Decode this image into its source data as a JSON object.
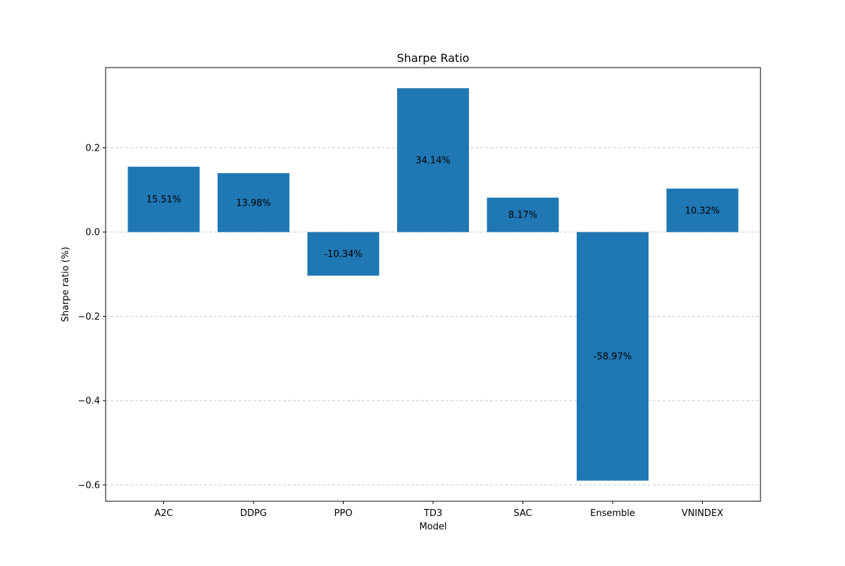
{
  "chart_data": {
    "type": "bar",
    "title": "Sharpe Ratio",
    "xlabel": "Model",
    "ylabel": "Sharpe ratio (%)",
    "categories": [
      "A2C",
      "DDPG",
      "PPO",
      "TD3",
      "SAC",
      "Ensemble",
      "VNINDEX"
    ],
    "values": [
      0.1551,
      0.1398,
      -0.1034,
      0.3414,
      0.0817,
      -0.5897,
      0.1032
    ],
    "data_labels": [
      "15.51%",
      "13.98%",
      "-10.34%",
      "34.14%",
      "8.17%",
      "-58.97%",
      "10.32%"
    ],
    "ylim": [
      -0.6386,
      0.3903
    ],
    "yticks": [
      -0.6,
      -0.4,
      -0.2,
      0.0,
      0.2
    ],
    "ytick_labels": [
      "−0.6",
      "−0.4",
      "−0.2",
      "0.0",
      "0.2"
    ],
    "grid": {
      "axis": "y",
      "style": "dashed"
    },
    "colors": {
      "bar": "#1f77b4",
      "grid": "#c8c8c8",
      "axis": "#000000"
    }
  }
}
